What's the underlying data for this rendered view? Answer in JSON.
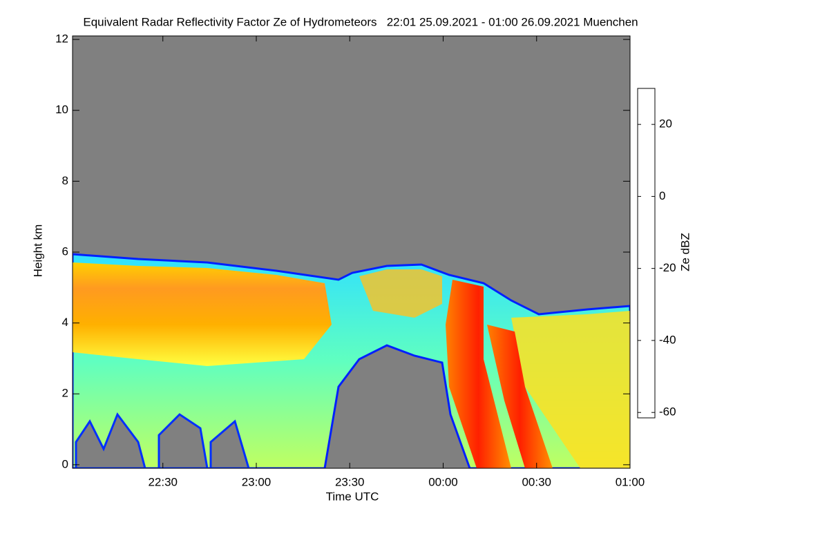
{
  "chart_data": {
    "type": "heatmap",
    "title": "Equivalent Radar Reflectivity Factor Ze of Hydrometeors   22:01 25.09.2021 - 01:00 26.09.2021 Muenchen",
    "x_label": "Time UTC",
    "y_label": "Height km",
    "colorbar_label": "Ze dBZ",
    "xlim": [
      1321,
      1500
    ],
    "xticks": [
      {
        "value": 1350,
        "label": "22:30"
      },
      {
        "value": 1380,
        "label": "23:00"
      },
      {
        "value": 1410,
        "label": "23:30"
      },
      {
        "value": 1440,
        "label": "00:00"
      },
      {
        "value": 1470,
        "label": "00:30"
      },
      {
        "value": 1500,
        "label": "01:00"
      }
    ],
    "ylim": [
      -0.1,
      12.1
    ],
    "yticks": [
      0,
      2,
      4,
      6,
      8,
      10,
      12
    ],
    "clim": [
      -61.5,
      30
    ],
    "cticks": [
      -60,
      -40,
      -20,
      0,
      20
    ],
    "colormap": [
      "#7a7a8c",
      "#2020c0",
      "#0000ff",
      "#0090ff",
      "#00ffff",
      "#80ff80",
      "#ffff00",
      "#ffa000",
      "#ff3000",
      "#c00000",
      "#800000"
    ],
    "background": "#808080"
  }
}
